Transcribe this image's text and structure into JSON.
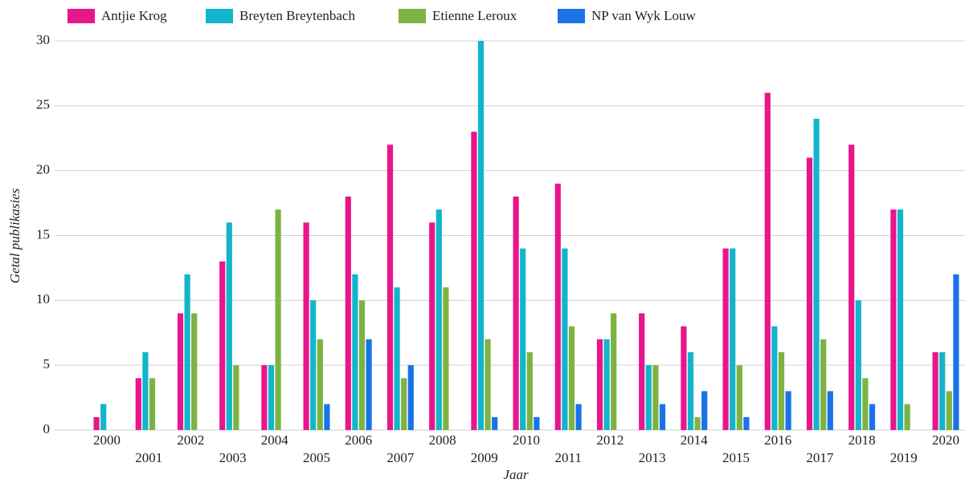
{
  "chart_data": {
    "type": "bar",
    "x_label": "Jaar",
    "y_label": "Getal publikasies",
    "categories": [
      "2000",
      "2001",
      "2002",
      "2003",
      "2004",
      "2005",
      "2006",
      "2007",
      "2008",
      "2009",
      "2010",
      "2011",
      "2012",
      "2013",
      "2014",
      "2015",
      "2016",
      "2017",
      "2018",
      "2019",
      "2020"
    ],
    "series": [
      {
        "name": "Antjie Krog",
        "color": "#e8168c",
        "values": [
          1,
          4,
          9,
          13,
          5,
          16,
          18,
          22,
          16,
          23,
          18,
          19,
          7,
          9,
          8,
          14,
          26,
          21,
          22,
          17,
          6
        ]
      },
      {
        "name": "Breyten Breytenbach",
        "color": "#12b5cb",
        "values": [
          2,
          6,
          12,
          16,
          5,
          10,
          12,
          11,
          17,
          30,
          14,
          14,
          7,
          5,
          6,
          14,
          8,
          24,
          10,
          17,
          6
        ]
      },
      {
        "name": "Etienne Leroux",
        "color": "#7cb342",
        "values": [
          0,
          4,
          9,
          5,
          17,
          7,
          10,
          4,
          11,
          7,
          6,
          8,
          9,
          5,
          1,
          5,
          6,
          7,
          4,
          2,
          3
        ]
      },
      {
        "name": "NP van Wyk Louw",
        "color": "#1a73e8",
        "values": [
          0,
          0,
          0,
          0,
          0,
          2,
          7,
          5,
          0,
          1,
          1,
          2,
          0,
          2,
          3,
          1,
          3,
          3,
          2,
          0,
          12
        ]
      }
    ],
    "ylim": [
      0,
      30
    ],
    "yticks": [
      0,
      5,
      10,
      15,
      20,
      25,
      30
    ],
    "grid": true,
    "legend": "top-left"
  }
}
